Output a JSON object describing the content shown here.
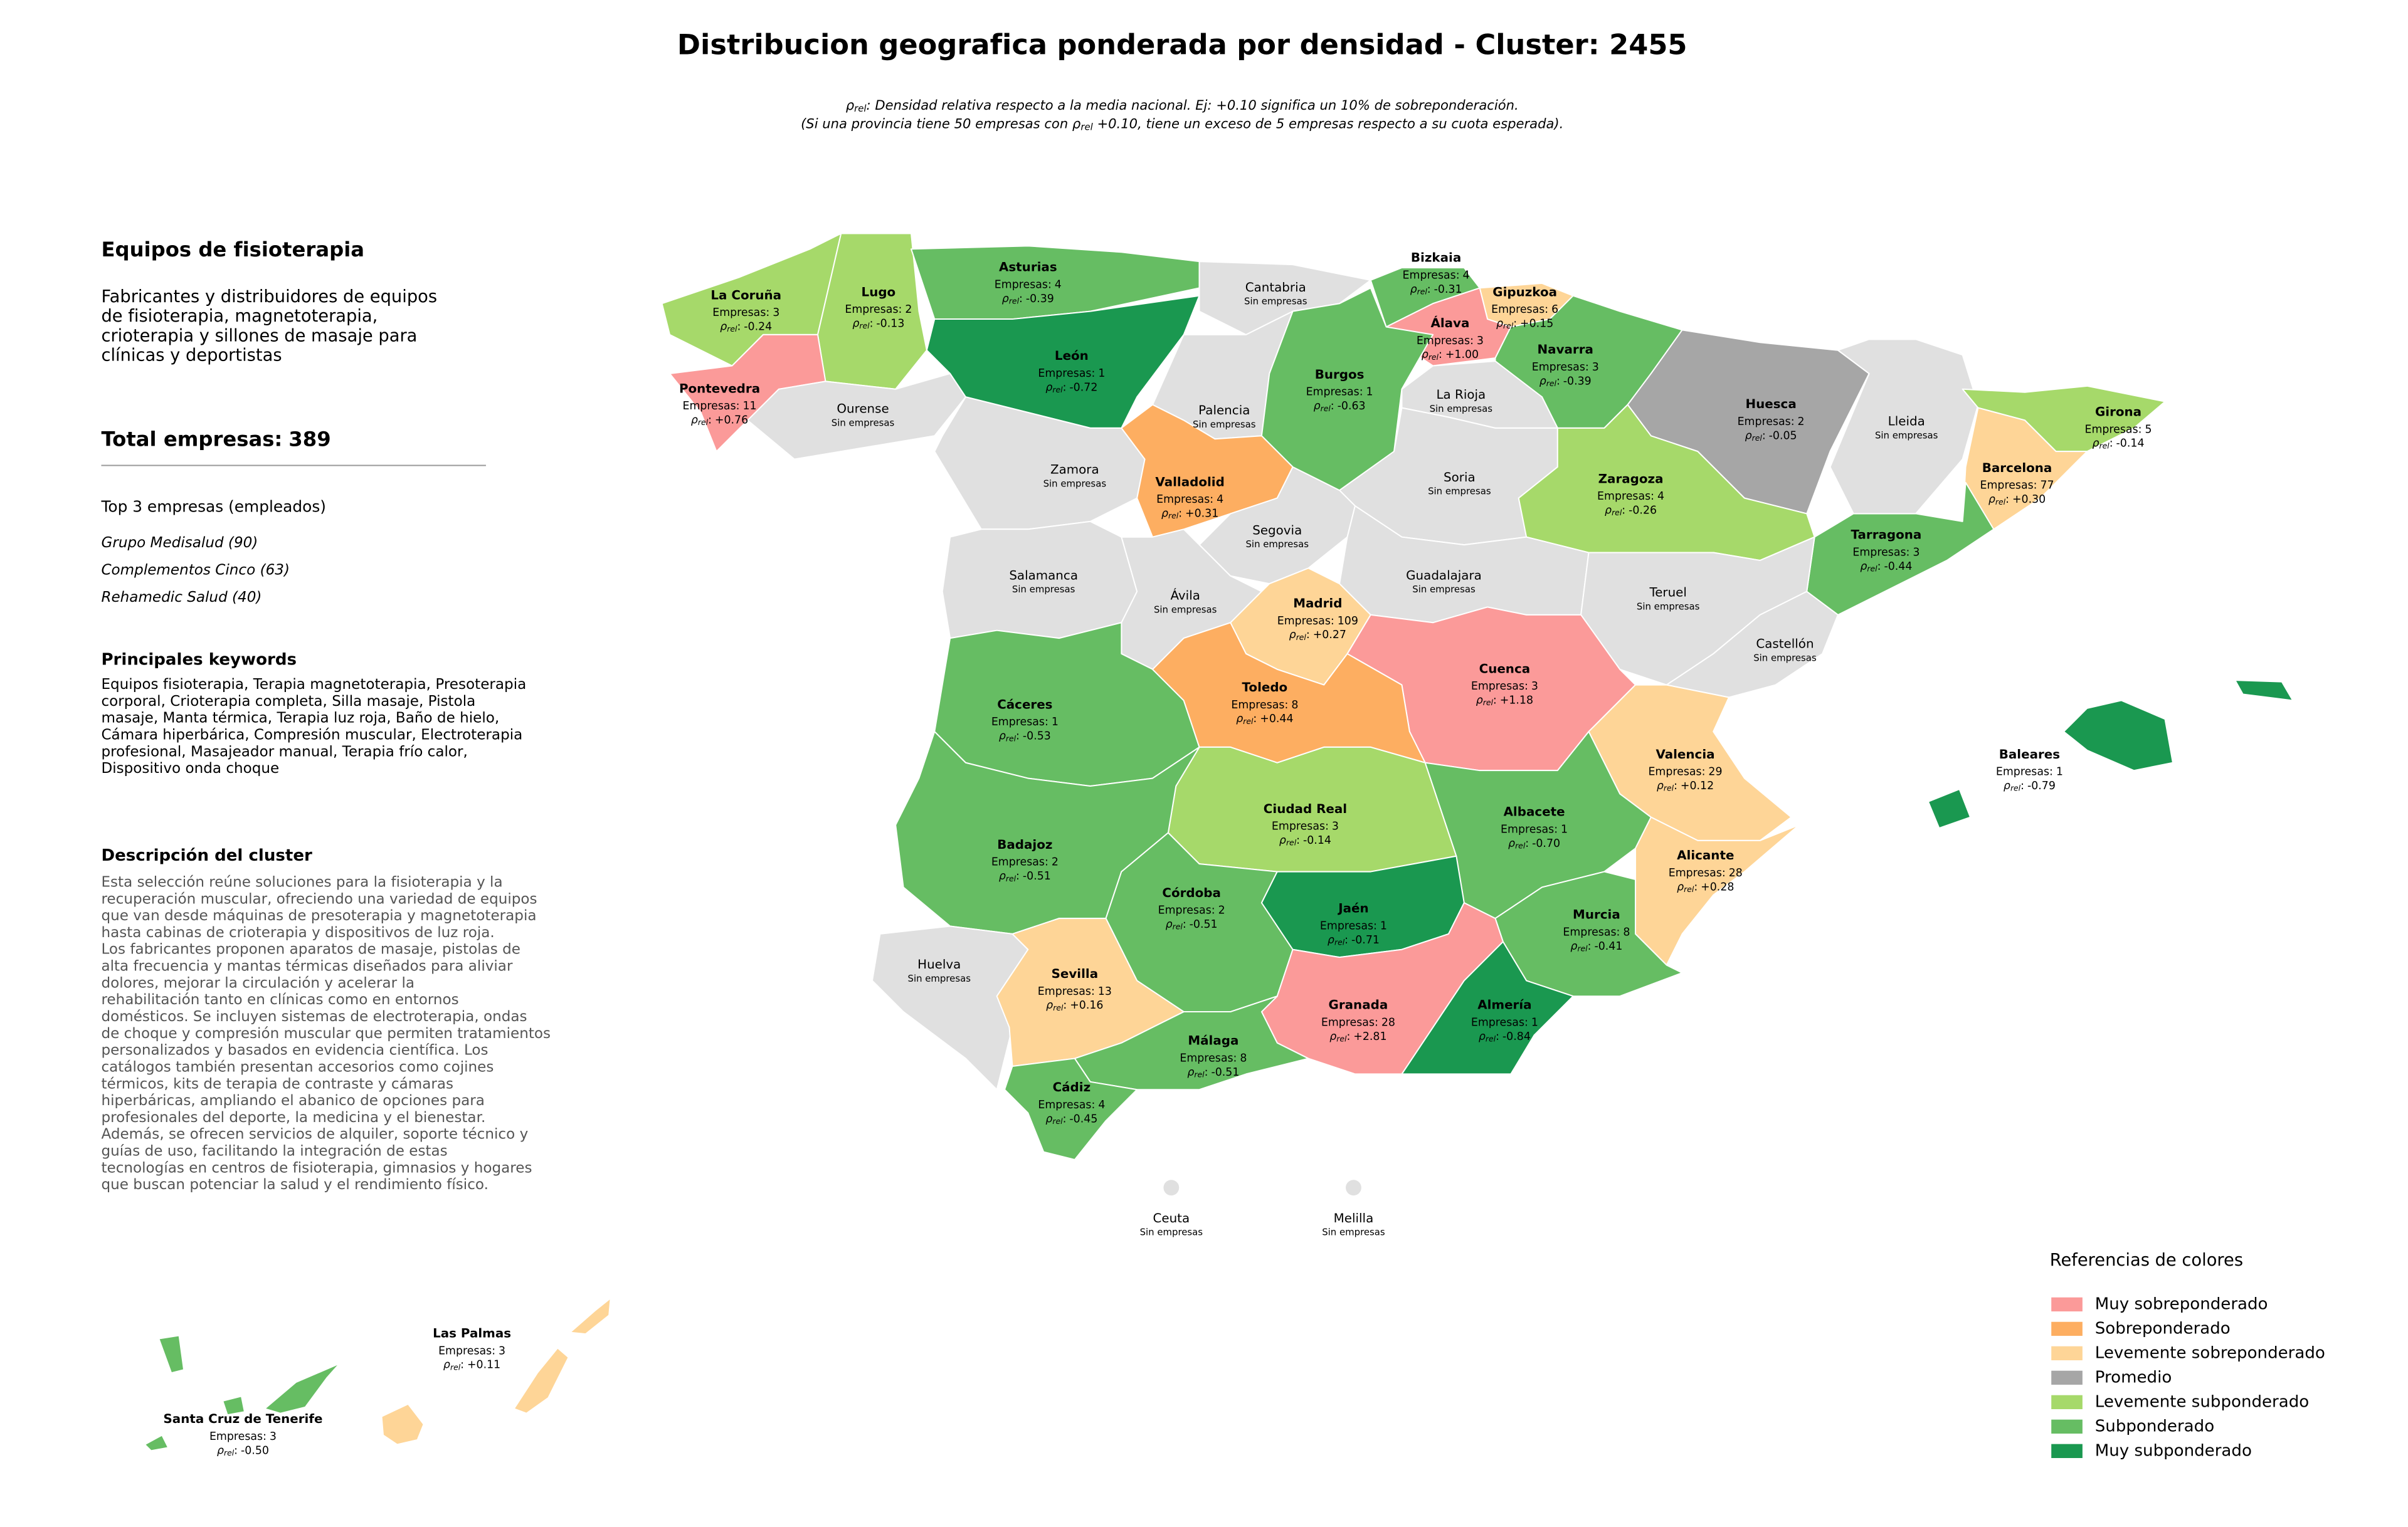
{
  "title": "Distribucion geografica ponderada por densidad - Cluster: 2455",
  "note": {
    "symbol": "ρ",
    "subscript": "rel",
    "line1": ": Densidad relativa respecto a la media nacional. Ej: +0.10 significa un 10% de sobreponderación.",
    "line2_start": "(Si una provincia tiene 50 empresas con ",
    "line2_end": " +0.10, tiene un exceso de 5 empresas respecto a su cuota esperada)."
  },
  "panel": {
    "heading": "Equipos de fisioterapia",
    "summary": [
      "Fabricantes y distribuidores de equipos",
      "de fisioterapia, magnetoterapia,",
      "crioterapia y sillones de masaje para",
      "clínicas y deportistas"
    ],
    "total_label": "Total empresas:",
    "total": 389,
    "top_heading": "Top 3 empresas (empleados)",
    "top_companies": [
      "Grupo Medisalud (90)",
      "Complementos Cinco (63)",
      "Rehamedic Salud (40)"
    ],
    "keywords_heading": "Principales keywords",
    "keywords": [
      "Equipos fisioterapia, Terapia magnetoterapia, Presoterapia",
      "corporal, Crioterapia completa, Silla masaje, Pistola",
      "masaje, Manta térmica, Terapia luz roja, Baño de hielo,",
      "Cámara hiperbárica, Compresión muscular, Electroterapia",
      "profesional, Masajeador manual, Terapia frío calor,",
      "Dispositivo onda choque"
    ],
    "description_heading": "Descripción del cluster",
    "description": [
      "Esta selección reúne soluciones para la fisioterapia y la",
      "recuperación muscular, ofreciendo una variedad de equipos",
      "que van desde máquinas de presoterapia y magnetoterapia",
      "hasta cabinas de crioterapia y dispositivos de luz roja.",
      "Los fabricantes proponen aparatos de masaje, pistolas de",
      "alta frecuencia y mantas térmicas diseñados para aliviar",
      "dolores, mejorar la circulación y acelerar la",
      "rehabilitación tanto en clínicas como en entornos",
      "domésticos. Se incluyen sistemas de electroterapia, ondas",
      "de choque y compresión muscular que permiten tratamientos",
      "personalizados y basados en evidencia científica. Los",
      "catálogos también presentan accesorios como cojines",
      "térmicos, kits de terapia de contraste y cámaras",
      "hiperbáricas, ampliando el abanico de opciones para",
      "profesionales del deporte, la medicina y el bienestar.",
      "Además, se ofrecen servicios de alquiler, soporte técnico y",
      "guías de uso, facilitando la integración de estas",
      "tecnologías en centros de fisioterapia, gimnasios y hogares",
      "que buscan potenciar la salud y el rendimiento físico."
    ]
  },
  "labels": {
    "companies": "Empresas:",
    "no_companies": "Sin empresas",
    "rho": "ρ",
    "rho_sub": "rel",
    "rho_sep": ":"
  },
  "empty_color": "#e0e0e0",
  "legend": {
    "title": "Referencias de colores",
    "items": [
      {
        "name": "Muy sobreponderado",
        "color": "#fb9a99"
      },
      {
        "name": "Sobreponderado",
        "color": "#fdae61"
      },
      {
        "name": "Levemente sobreponderado",
        "color": "#fed597"
      },
      {
        "name": "Promedio",
        "color": "#a6a6a6"
      },
      {
        "name": "Levemente subponderado",
        "color": "#a6d96a"
      },
      {
        "name": "Subponderado",
        "color": "#66bd63"
      },
      {
        "name": "Muy subponderado",
        "color": "#1a9850"
      }
    ]
  },
  "provinces": [
    {
      "name": "La Coruña",
      "companies": 3,
      "rho": "-0.24",
      "level": 4
    },
    {
      "name": "Lugo",
      "companies": 2,
      "rho": "-0.13",
      "level": 4
    },
    {
      "name": "Asturias",
      "companies": 4,
      "rho": "-0.39",
      "level": 5
    },
    {
      "name": "Cantabria"
    },
    {
      "name": "Bizkaia",
      "companies": 4,
      "rho": "-0.31",
      "level": 5
    },
    {
      "name": "Gipuzkoa",
      "companies": 6,
      "rho": "+0.15",
      "level": 2
    },
    {
      "name": "Álava",
      "companies": 3,
      "rho": "+1.00",
      "level": 0
    },
    {
      "name": "Navarra",
      "companies": 3,
      "rho": "-0.39",
      "level": 5
    },
    {
      "name": "Pontevedra",
      "companies": 11,
      "rho": "+0.76",
      "level": 0
    },
    {
      "name": "Ourense"
    },
    {
      "name": "León",
      "companies": 1,
      "rho": "-0.72",
      "level": 6
    },
    {
      "name": "Palencia"
    },
    {
      "name": "Burgos",
      "companies": 1,
      "rho": "-0.63",
      "level": 5
    },
    {
      "name": "La Rioja"
    },
    {
      "name": "Huesca",
      "companies": 2,
      "rho": "-0.05",
      "level": 3
    },
    {
      "name": "Lleida"
    },
    {
      "name": "Girona",
      "companies": 5,
      "rho": "-0.14",
      "level": 4
    },
    {
      "name": "Zamora"
    },
    {
      "name": "Valladolid",
      "companies": 4,
      "rho": "+0.31",
      "level": 1
    },
    {
      "name": "Soria"
    },
    {
      "name": "Zaragoza",
      "companies": 4,
      "rho": "-0.26",
      "level": 4
    },
    {
      "name": "Barcelona",
      "companies": 77,
      "rho": "+0.30",
      "level": 2
    },
    {
      "name": "Salamanca"
    },
    {
      "name": "Segovia"
    },
    {
      "name": "Ávila"
    },
    {
      "name": "Guadalajara"
    },
    {
      "name": "Tarragona",
      "companies": 3,
      "rho": "-0.44",
      "level": 5
    },
    {
      "name": "Teruel"
    },
    {
      "name": "Madrid",
      "companies": 109,
      "rho": "+0.27",
      "level": 2
    },
    {
      "name": "Castellón"
    },
    {
      "name": "Cuenca",
      "companies": 3,
      "rho": "+1.18",
      "level": 0
    },
    {
      "name": "Cáceres",
      "companies": 1,
      "rho": "-0.53",
      "level": 5
    },
    {
      "name": "Toledo",
      "companies": 8,
      "rho": "+0.44",
      "level": 1
    },
    {
      "name": "Valencia",
      "companies": 29,
      "rho": "+0.12",
      "level": 2
    },
    {
      "name": "Baleares",
      "companies": 1,
      "rho": "-0.79",
      "level": 6
    },
    {
      "name": "Ciudad Real",
      "companies": 3,
      "rho": "-0.14",
      "level": 4
    },
    {
      "name": "Albacete",
      "companies": 1,
      "rho": "-0.70",
      "level": 5
    },
    {
      "name": "Badajoz",
      "companies": 2,
      "rho": "-0.51",
      "level": 5
    },
    {
      "name": "Alicante",
      "companies": 28,
      "rho": "+0.28",
      "level": 2
    },
    {
      "name": "Córdoba",
      "companies": 2,
      "rho": "-0.51",
      "level": 5
    },
    {
      "name": "Jaén",
      "companies": 1,
      "rho": "-0.71",
      "level": 6
    },
    {
      "name": "Murcia",
      "companies": 8,
      "rho": "-0.41",
      "level": 5
    },
    {
      "name": "Huelva"
    },
    {
      "name": "Sevilla",
      "companies": 13,
      "rho": "+0.16",
      "level": 2
    },
    {
      "name": "Granada",
      "companies": 28,
      "rho": "+2.81",
      "level": 0
    },
    {
      "name": "Almería",
      "companies": 1,
      "rho": "-0.84",
      "level": 6
    },
    {
      "name": "Málaga",
      "companies": 8,
      "rho": "-0.51",
      "level": 5
    },
    {
      "name": "Cádiz",
      "companies": 4,
      "rho": "-0.45",
      "level": 5
    },
    {
      "name": "Ceuta"
    },
    {
      "name": "Melilla"
    },
    {
      "name": "Las Palmas",
      "companies": 3,
      "rho": "+0.11",
      "level": 2
    },
    {
      "name": "Santa Cruz de Tenerife",
      "companies": 3,
      "rho": "-0.50",
      "level": 5
    }
  ]
}
